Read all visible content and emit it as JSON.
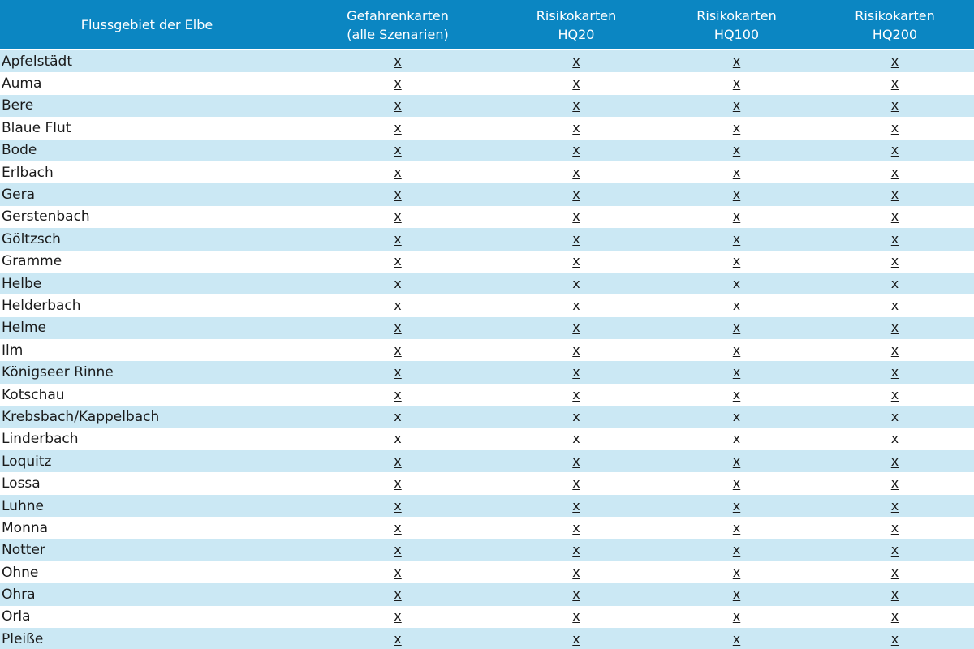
{
  "header": {
    "col0": "Flussgebiet der Elbe",
    "col1": [
      "Gefahrenkarten",
      "(alle Szenarien)"
    ],
    "col2": [
      "Risikokarten",
      "HQ20"
    ],
    "col3": [
      "Risikokarten",
      "HQ100"
    ],
    "col4": [
      "Risikokarten",
      "HQ200"
    ]
  },
  "rows": [
    {
      "name": "Apfelstädt",
      "marks": [
        "x",
        "x",
        "x",
        "x"
      ]
    },
    {
      "name": "Auma",
      "marks": [
        "x",
        "x",
        "x",
        "x"
      ]
    },
    {
      "name": "Bere",
      "marks": [
        "x",
        "x",
        "x",
        "x"
      ]
    },
    {
      "name": "Blaue Flut",
      "marks": [
        "x",
        "x",
        "x",
        "x"
      ]
    },
    {
      "name": "Bode",
      "marks": [
        "x",
        "x",
        "x",
        "x"
      ]
    },
    {
      "name": "Erlbach",
      "marks": [
        "x",
        "x",
        "x",
        "x"
      ]
    },
    {
      "name": "Gera",
      "marks": [
        "x",
        "x",
        "x",
        "x"
      ]
    },
    {
      "name": "Gerstenbach",
      "marks": [
        "x",
        "x",
        "x",
        "x"
      ]
    },
    {
      "name": "Göltzsch",
      "marks": [
        "x",
        "x",
        "x",
        "x"
      ]
    },
    {
      "name": "Gramme",
      "marks": [
        "x",
        "x",
        "x",
        "x"
      ]
    },
    {
      "name": "Helbe",
      "marks": [
        "x",
        "x",
        "x",
        "x"
      ]
    },
    {
      "name": "Helderbach",
      "marks": [
        "x",
        "x",
        "x",
        "x"
      ]
    },
    {
      "name": "Helme",
      "marks": [
        "x",
        "x",
        "x",
        "x"
      ]
    },
    {
      "name": "Ilm",
      "marks": [
        "x",
        "x",
        "x",
        "x"
      ]
    },
    {
      "name": "Königseer Rinne",
      "marks": [
        "x",
        "x",
        "x",
        "x"
      ]
    },
    {
      "name": "Kotschau",
      "marks": [
        "x",
        "x",
        "x",
        "x"
      ]
    },
    {
      "name": "Krebsbach/Kappelbach",
      "marks": [
        "x",
        "x",
        "x",
        "x"
      ]
    },
    {
      "name": "Linderbach",
      "marks": [
        "x",
        "x",
        "x",
        "x"
      ]
    },
    {
      "name": "Loquitz",
      "marks": [
        "x",
        "x",
        "x",
        "x"
      ]
    },
    {
      "name": "Lossa",
      "marks": [
        "x",
        "x",
        "x",
        "x"
      ]
    },
    {
      "name": "Luhne",
      "marks": [
        "x",
        "x",
        "x",
        "x"
      ]
    },
    {
      "name": "Monna",
      "marks": [
        "x",
        "x",
        "x",
        "x"
      ]
    },
    {
      "name": "Notter",
      "marks": [
        "x",
        "x",
        "x",
        "x"
      ]
    },
    {
      "name": "Ohne",
      "marks": [
        "x",
        "x",
        "x",
        "x"
      ]
    },
    {
      "name": "Ohra",
      "marks": [
        "x",
        "x",
        "x",
        "x"
      ]
    },
    {
      "name": "Orla",
      "marks": [
        "x",
        "x",
        "x",
        "x"
      ]
    },
    {
      "name": "Pleiße",
      "marks": [
        "x",
        "x",
        "x",
        "x"
      ]
    }
  ],
  "colors": {
    "header_bg": "#0b86c2",
    "row_stripe": "#cbe8f4",
    "row_plain": "#ffffff"
  }
}
